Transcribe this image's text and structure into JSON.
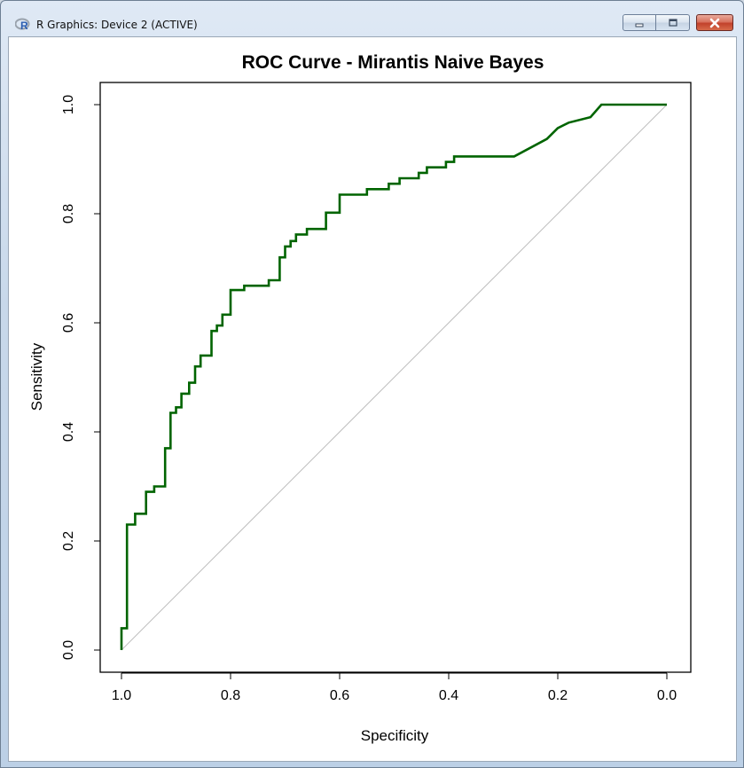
{
  "window": {
    "title": "R Graphics: Device 2 (ACTIVE)",
    "icons": {
      "app": "r-logo-icon",
      "minimize": "minimize-icon",
      "maximize": "maximize-icon",
      "close": "close-icon"
    }
  },
  "chart_data": {
    "type": "line",
    "title": "ROC Curve - Mirantis Naive Bayes",
    "xlabel": "Specificity",
    "ylabel": "Sensitivity",
    "xlim": [
      1.0,
      0.0
    ],
    "ylim": [
      0.0,
      1.0
    ],
    "x_reversed": true,
    "xticks": [
      1.0,
      0.8,
      0.6,
      0.4,
      0.2,
      0.0
    ],
    "xtick_labels": [
      "1.0",
      "0.8",
      "0.6",
      "0.4",
      "0.2",
      "0.0"
    ],
    "yticks": [
      0.0,
      0.2,
      0.4,
      0.6,
      0.8,
      1.0
    ],
    "ytick_labels": [
      "0.0",
      "0.2",
      "0.4",
      "0.6",
      "0.8",
      "1.0"
    ],
    "grid": false,
    "colors": {
      "curve": "#006400",
      "diagonal": "#bebebe"
    },
    "reference_line": {
      "x": [
        1.0,
        0.0
      ],
      "y": [
        0.0,
        1.0
      ]
    },
    "series": [
      {
        "x": [
          1.0,
          1.0,
          0.99,
          0.99,
          0.975,
          0.975,
          0.955,
          0.955,
          0.94,
          0.94,
          0.92,
          0.92,
          0.91,
          0.91,
          0.9,
          0.9,
          0.89,
          0.89,
          0.876,
          0.876,
          0.865,
          0.865,
          0.855,
          0.855,
          0.835,
          0.835,
          0.825,
          0.825,
          0.815,
          0.815,
          0.8,
          0.8,
          0.775,
          0.775,
          0.765,
          0.765,
          0.73,
          0.73,
          0.71,
          0.71,
          0.7,
          0.7,
          0.69,
          0.69,
          0.68,
          0.68,
          0.66,
          0.66,
          0.625,
          0.625,
          0.6,
          0.6,
          0.55,
          0.55,
          0.51,
          0.51,
          0.49,
          0.49,
          0.455,
          0.455,
          0.44,
          0.44,
          0.405,
          0.405,
          0.39,
          0.39,
          0.34,
          0.34,
          0.28,
          0.22,
          0.22,
          0.2,
          0.2,
          0.18,
          0.18,
          0.14,
          0.14,
          0.12,
          0.12,
          0.0
        ],
        "y": [
          0.0,
          0.04,
          0.04,
          0.23,
          0.23,
          0.25,
          0.25,
          0.29,
          0.29,
          0.3,
          0.3,
          0.37,
          0.37,
          0.435,
          0.435,
          0.445,
          0.445,
          0.47,
          0.47,
          0.49,
          0.49,
          0.52,
          0.52,
          0.54,
          0.54,
          0.585,
          0.585,
          0.595,
          0.595,
          0.615,
          0.615,
          0.66,
          0.66,
          0.668,
          0.668,
          0.668,
          0.668,
          0.678,
          0.678,
          0.72,
          0.72,
          0.74,
          0.74,
          0.75,
          0.75,
          0.762,
          0.762,
          0.772,
          0.772,
          0.802,
          0.802,
          0.835,
          0.835,
          0.845,
          0.845,
          0.855,
          0.855,
          0.865,
          0.865,
          0.875,
          0.875,
          0.885,
          0.885,
          0.895,
          0.895,
          0.905,
          0.905,
          0.905,
          0.905,
          0.937,
          0.937,
          0.957,
          0.957,
          0.967,
          0.967,
          0.977,
          0.977,
          1.0,
          1.0,
          1.0
        ]
      }
    ]
  }
}
